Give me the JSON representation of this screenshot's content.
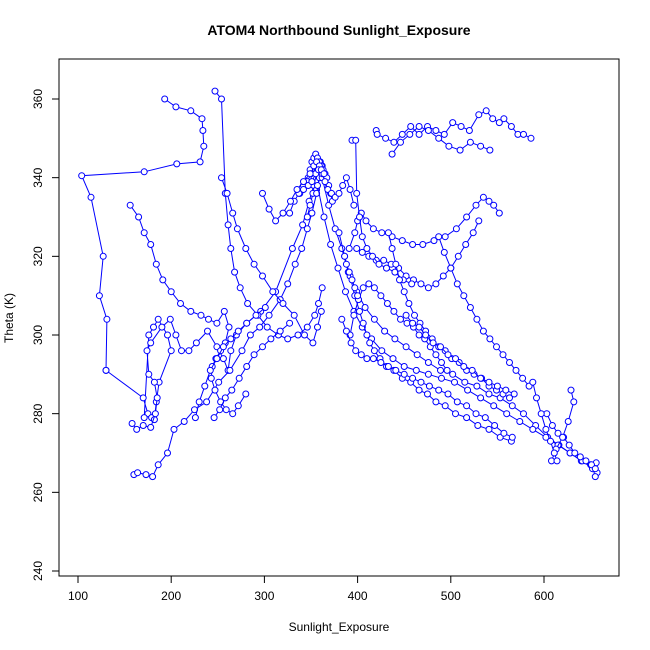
{
  "chart_data": {
    "type": "scatter",
    "style": "points-and-lines",
    "title": "ATOM4 Northbound Sunlight_Exposure",
    "xlabel": "Sunlight_Exposure",
    "ylabel": "Theta (K)",
    "xlim": [
      100,
      660
    ],
    "ylim": [
      240,
      370
    ],
    "x_ticks": [
      100,
      200,
      300,
      400,
      500,
      600
    ],
    "y_ticks": [
      240,
      260,
      280,
      300,
      320,
      340,
      360
    ],
    "grid": false,
    "legend": "none",
    "colors": {
      "series": "#0000ff",
      "axis": "#000000"
    },
    "series": [
      {
        "x": [
          193,
          205,
          221,
          233,
          234,
          235,
          231,
          206,
          171,
          104,
          114,
          127,
          123,
          131,
          130
        ],
        "y": [
          360,
          358,
          357,
          355,
          352,
          348,
          344,
          343.5,
          341.5,
          340.5,
          335,
          320,
          310,
          304,
          291
        ]
      },
      {
        "x": [
          130,
          170,
          175,
          179,
          182,
          184,
          187,
          200,
          196,
          186,
          181,
          176,
          171
        ],
        "y": [
          291,
          284,
          280,
          279,
          278.5,
          283,
          288,
          296,
          300,
          304,
          302,
          300,
          279
        ]
      },
      {
        "x": [
          158,
          163,
          170,
          178,
          183,
          185,
          182,
          176,
          174,
          178,
          190,
          199,
          205,
          211,
          219,
          227,
          239,
          249,
          256,
          261,
          264,
          270,
          281,
          296,
          312,
          330,
          341,
          348,
          353,
          357,
          360,
          362,
          359,
          356,
          352,
          349,
          346
        ],
        "y": [
          277.5,
          276,
          277,
          276.5,
          280,
          284,
          288,
          290,
          296,
          298,
          302,
          304,
          300,
          296,
          296,
          298,
          301,
          297,
          294,
          291,
          296,
          300,
          303,
          306,
          311,
          322,
          328,
          334,
          338,
          342,
          344,
          343,
          340,
          337,
          336,
          333,
          330
        ]
      },
      {
        "x": [
          160,
          164,
          173,
          180,
          186,
          196,
          203,
          214,
          225,
          238,
          251,
          263,
          276,
          285,
          295,
          305,
          317,
          325,
          333,
          340,
          346,
          351,
          356,
          359,
          361
        ],
        "y": [
          264.5,
          265,
          264.5,
          264,
          267,
          270,
          276,
          278,
          281,
          283,
          288,
          291,
          296,
          300,
          302,
          305,
          309,
          313,
          318,
          322,
          327,
          331,
          336,
          340,
          342
        ]
      },
      {
        "x": [
          247,
          254,
          258,
          261,
          264,
          268,
          274,
          282,
          293,
          303,
          315,
          325,
          336,
          346,
          354,
          358,
          362
        ],
        "y": [
          362,
          360,
          336,
          328,
          322,
          316,
          312,
          308,
          305,
          302,
          300,
          299,
          300,
          302,
          305,
          308,
          312
        ]
      },
      {
        "x": [
          254,
          260,
          266,
          271,
          280,
          289,
          298,
          309,
          320,
          332,
          343,
          352,
          357,
          361
        ],
        "y": [
          340,
          336,
          331,
          327,
          322,
          318,
          315,
          311,
          308,
          305,
          300,
          298,
          302,
          306
        ]
      },
      {
        "x": [
          156,
          165,
          171,
          178,
          184,
          191,
          200,
          210,
          221,
          232,
          240,
          249,
          257,
          262,
          258,
          253,
          248,
          244,
          243,
          247,
          253,
          259,
          266,
          272,
          280
        ],
        "y": [
          333,
          330,
          326,
          323,
          318,
          314,
          311,
          308,
          306,
          305,
          304,
          303,
          306,
          302,
          298,
          296,
          294,
          292,
          289,
          286,
          283,
          281,
          280,
          282,
          285
        ]
      },
      {
        "x": [
          362,
          369,
          376,
          383,
          390,
          399,
          408,
          418,
          429,
          440,
          452,
          464,
          476,
          489,
          502,
          515,
          528,
          541,
          553,
          566,
          578,
          591,
          604,
          616,
          628,
          640,
          650,
          657,
          655
        ],
        "y": [
          340,
          333,
          327,
          322,
          316,
          311,
          307,
          304,
          301,
          299,
          297,
          295,
          293,
          291,
          290,
          288,
          287,
          285,
          284,
          282,
          280,
          277,
          274,
          272,
          270,
          268,
          267,
          265,
          264
        ]
      },
      {
        "x": [
          357,
          364,
          371,
          379,
          387,
          396,
          405,
          415,
          426,
          438,
          450,
          463,
          476,
          490,
          504,
          518,
          532,
          546,
          560,
          574,
          588,
          602,
          615,
          628,
          641,
          652,
          656
        ],
        "y": [
          338,
          330,
          323,
          317,
          311,
          306,
          302,
          299,
          296,
          294,
          292,
          291,
          290,
          289,
          288,
          286,
          284,
          282,
          280,
          278,
          276,
          274,
          272,
          270,
          268,
          266,
          267.5
        ]
      },
      {
        "x": [
          380,
          386,
          392,
          397,
          402,
          406,
          410,
          413,
          418,
          424,
          431,
          439,
          448,
          457,
          466,
          475,
          484,
          494,
          505,
          517,
          529,
          541,
          553,
          565
        ],
        "y": [
          326,
          320,
          315,
          310,
          306,
          303,
          300,
          298,
          296,
          294,
          292,
          291,
          289,
          288,
          286,
          285,
          283,
          282,
          280,
          279,
          277,
          276,
          274,
          273
        ]
      },
      {
        "x": [
          420,
          421,
          430,
          439,
          448,
          457,
          466,
          475,
          484,
          493,
          502,
          511,
          520,
          530,
          538,
          545,
          552,
          557,
          565,
          572,
          578,
          586
        ],
        "y": [
          352,
          351,
          350,
          349,
          351,
          353,
          351,
          353,
          352,
          351,
          354,
          353,
          352,
          356,
          357,
          355,
          354,
          355,
          353,
          351,
          351,
          350
        ]
      },
      {
        "x": [
          437,
          446,
          456,
          466,
          476,
          487,
          498,
          510,
          521,
          532,
          542
        ],
        "y": [
          346,
          349,
          351,
          353,
          352,
          350,
          348,
          347,
          349,
          348,
          347
        ]
      },
      {
        "x": [
          391,
          397,
          400,
          404,
          409,
          417,
          426,
          437,
          448,
          459,
          470,
          482,
          494,
          506,
          517,
          527,
          535,
          541,
          546,
          552
        ],
        "y": [
          322,
          326,
          329,
          331,
          329,
          327,
          326,
          325,
          324,
          323,
          323,
          324,
          325,
          327,
          330,
          333,
          335,
          334,
          333,
          331
        ]
      },
      {
        "x": [
          399,
          405,
          412,
          420,
          428,
          436,
          444,
          452,
          460,
          468,
          476,
          484,
          492,
          500,
          508,
          516,
          524,
          530
        ],
        "y": [
          322,
          321,
          320,
          319,
          319,
          318,
          317,
          315,
          314,
          313,
          312,
          313,
          315,
          317,
          320,
          323,
          326,
          329
        ]
      },
      {
        "x": [
          392,
          396,
          401,
          406,
          412,
          418,
          425,
          432,
          439,
          446,
          453,
          460,
          466,
          472,
          478,
          484,
          490,
          496
        ],
        "y": [
          300,
          305,
          309,
          312,
          313,
          312,
          310,
          308,
          306,
          304,
          303,
          302,
          300,
          299,
          297,
          295,
          293,
          291
        ]
      },
      {
        "x": [
          383,
          388,
          393,
          398,
          404,
          410,
          417,
          425,
          433,
          441,
          450,
          459,
          468,
          477,
          487,
          497,
          507,
          517,
          527,
          537,
          547,
          557,
          566
        ],
        "y": [
          304,
          301,
          298,
          296,
          295,
          294,
          294,
          293,
          292,
          291,
          290,
          289,
          288,
          287,
          286,
          285,
          283,
          282,
          280,
          279,
          277,
          275,
          274
        ]
      },
      {
        "x": [
          347,
          349,
          351,
          353,
          355,
          357,
          359,
          361,
          363,
          365,
          367,
          369,
          371,
          373
        ],
        "y": [
          340,
          342,
          344,
          345,
          346,
          345,
          344,
          343,
          342,
          341,
          340,
          338,
          336,
          334
        ]
      },
      {
        "x": [
          338,
          342,
          346,
          350,
          353,
          356,
          359,
          362,
          365,
          368,
          372,
          376,
          380,
          384,
          388,
          392,
          396
        ],
        "y": [
          336,
          338,
          339,
          341,
          343,
          344,
          343,
          341,
          339,
          337,
          336,
          335,
          336,
          338,
          340,
          337,
          333
        ]
      },
      {
        "x": [
          327,
          332,
          337,
          342,
          347,
          351,
          355,
          358,
          361,
          364
        ],
        "y": [
          331,
          334,
          336,
          337,
          338,
          339,
          341,
          342,
          342,
          341
        ]
      },
      {
        "x": [
          298,
          305,
          312,
          320,
          328,
          335,
          342,
          349
        ],
        "y": [
          336,
          332,
          329,
          331,
          334,
          337,
          339,
          341
        ]
      },
      {
        "x": [
          386,
          388,
          391,
          394,
          397,
          400
        ],
        "y": [
          320,
          318,
          316,
          314,
          312,
          310
        ]
      },
      {
        "x": [
          394,
          398,
          399,
          402,
          405,
          410,
          416,
          423,
          431,
          440,
          449,
          458
        ],
        "y": [
          349.5,
          349.5,
          336,
          330,
          325,
          322,
          320,
          318,
          317,
          316,
          314,
          313
        ]
      },
      {
        "x": [
          433,
          437,
          441,
          445,
          450,
          455,
          461,
          467,
          473,
          480,
          487,
          494,
          501,
          509,
          517,
          525,
          533,
          541,
          549,
          556,
          563
        ],
        "y": [
          326,
          322,
          318,
          314,
          311,
          308,
          305,
          303,
          301,
          299,
          297,
          296,
          294,
          293,
          291,
          290,
          289,
          287,
          286,
          285,
          284
        ]
      },
      {
        "x": [
          452,
          459,
          466,
          473,
          481,
          489,
          497,
          505,
          514,
          523,
          532,
          541,
          550,
          559,
          568
        ],
        "y": [
          305,
          303,
          302,
          300,
          298,
          297,
          295,
          294,
          292,
          291,
          289,
          288,
          287,
          286,
          285
        ]
      },
      {
        "x": [
          487,
          493,
          500,
          507,
          514,
          521,
          528,
          535,
          542,
          549,
          556,
          563,
          570,
          577,
          584
        ],
        "y": [
          325,
          321,
          317,
          313,
          310,
          307,
          304,
          301,
          299,
          297,
          295,
          293,
          291,
          289,
          287
        ]
      },
      {
        "x": [
          603,
          609,
          615,
          621,
          627,
          633,
          639,
          645,
          651,
          655
        ],
        "y": [
          280,
          277,
          275,
          274,
          272,
          270,
          269,
          268,
          267,
          266
        ]
      },
      {
        "x": [
          629,
          632,
          626,
          620,
          613,
          608
        ],
        "y": [
          286,
          283,
          278,
          274,
          271,
          268
        ]
      },
      {
        "x": [
          588,
          592,
          597,
          602,
          607,
          611,
          614
        ],
        "y": [
          288,
          284,
          280,
          276,
          273,
          270,
          268
        ]
      },
      {
        "x": [
          246,
          252,
          258,
          265,
          273,
          281,
          289,
          298,
          307,
          317,
          327
        ],
        "y": [
          279,
          281,
          284,
          286,
          289,
          292,
          295,
          297,
          299,
          301,
          303
        ]
      },
      {
        "x": [
          226,
          230,
          236,
          242,
          249,
          256,
          264,
          272,
          281,
          291,
          301
        ],
        "y": [
          279,
          283,
          287,
          291,
          294,
          297,
          299,
          301,
          303,
          305,
          307
        ]
      }
    ]
  }
}
